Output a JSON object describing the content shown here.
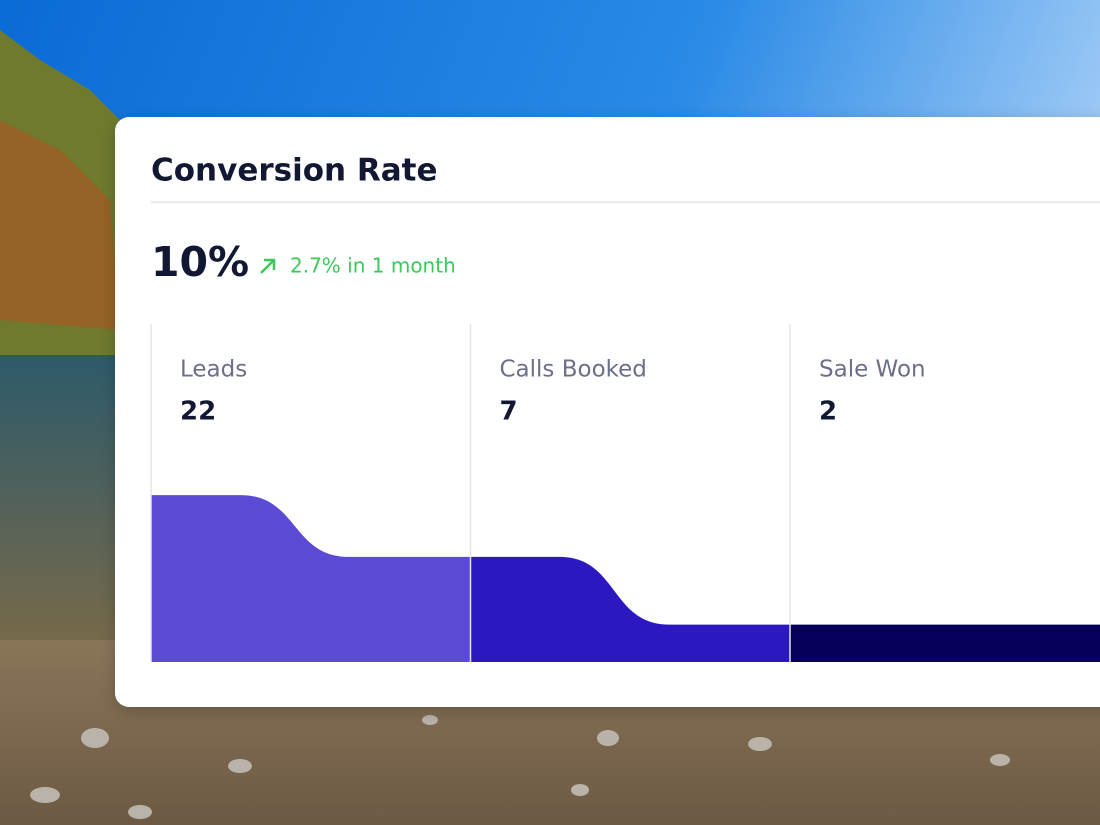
{
  "card": {
    "title": "Conversion Rate",
    "headline": "10%",
    "change": "2.7% in 1 month"
  },
  "chart_data": {
    "type": "funnel",
    "categories": [
      "Leads",
      "Calls Booked",
      "Sale Won"
    ],
    "values": [
      22,
      7,
      2
    ],
    "colors": [
      "#5b4bd4",
      "#2c18c0",
      "#06005a"
    ],
    "log_scale": true
  }
}
